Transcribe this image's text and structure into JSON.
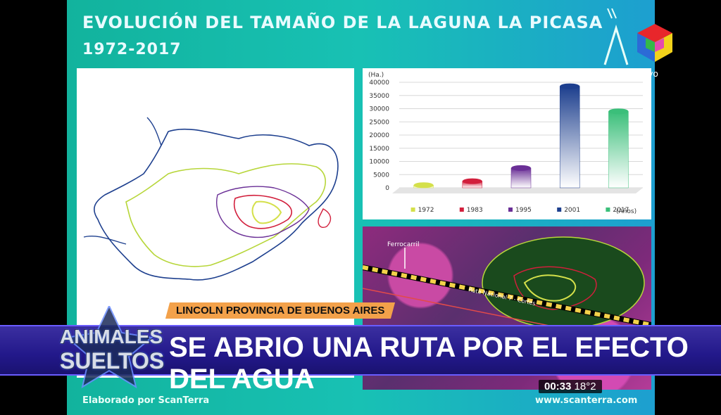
{
  "slide": {
    "title_line1": "EVOLUCIÓN DEL TAMAÑO DE LA LAGUNA LA PICASA",
    "title_line2": "1972-2017",
    "footer_left": "Elaborado por ScanTerra",
    "footer_right": "www.scanterra.com"
  },
  "channel": {
    "live_label": "vivo"
  },
  "lower_third": {
    "location": "LINCOLN PROVINCIA DE BUENOS AIRES",
    "headline": "SE ABRIO UNA RUTA POR EL EFECTO DEL AGUA",
    "show_line1": "ANIMALES",
    "show_line2": "SUELTOS"
  },
  "clock": {
    "time": "00:33",
    "temperature": "18°2"
  },
  "satellite": {
    "label1": "Ferrocarril",
    "label2": "Ruta Nacional 7 - Cortes"
  },
  "chart_data": {
    "type": "bar",
    "unit_label": "(Ha.)",
    "x_unit_label": "(Años)",
    "categories": [
      "1972",
      "1983",
      "1995",
      "2001",
      "2017"
    ],
    "series": [
      {
        "values": [
          1000,
          2500,
          7500,
          38500,
          29000
        ]
      }
    ],
    "colors": [
      "#d4e04a",
      "#d21f3c",
      "#6a2f96",
      "#1d3f8e",
      "#3bbf7a"
    ],
    "ylim": [
      0,
      40000
    ],
    "yticks": [
      0,
      5000,
      10000,
      15000,
      20000,
      25000,
      30000,
      35000,
      40000
    ],
    "grid": true,
    "legend": "bottom"
  }
}
